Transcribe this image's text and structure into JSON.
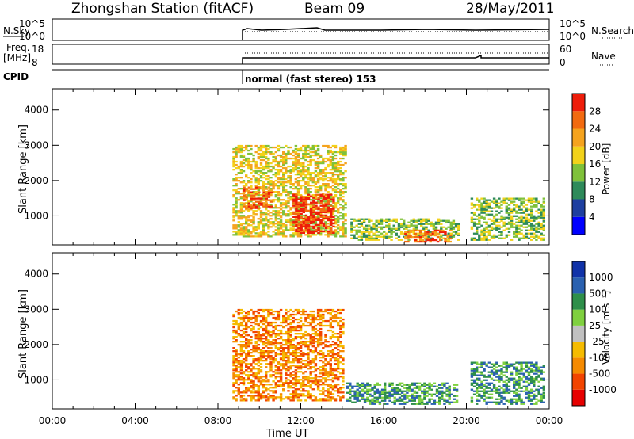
{
  "header": {
    "station": "Zhongshan Station (fitACF)",
    "beam": "Beam 09",
    "date": "28/May/2011"
  },
  "strips": {
    "nsky_label": "N.Sky",
    "nsky_ticks": [
      "10^5",
      "10^0"
    ],
    "nsearch_label": "N.Search",
    "nsearch_ticks": [
      "10^5",
      "10^0"
    ],
    "freq_label": "Freq.",
    "freq_unit": "[MHz]",
    "freq_ticks": [
      "18",
      "8"
    ],
    "nave_label": "Nave",
    "nave_ticks": [
      "60",
      "0"
    ],
    "cpid_label": "CPID",
    "cpid_mode": "normal (fast stereo) 153"
  },
  "colors": {
    "power": [
      "#0000ff",
      "#1e3fa0",
      "#2e8a5a",
      "#7fc13a",
      "#f2d21a",
      "#f5a31e",
      "#f26a10",
      "#ee1d0a"
    ],
    "velocity": [
      "#e60000",
      "#f24400",
      "#f58a00",
      "#f5bb00",
      "#c0c0c0",
      "#7fd03f",
      "#2e8f4a",
      "#2a61b0",
      "#1032a8"
    ]
  },
  "chart_data": [
    {
      "type": "heatmap",
      "panel": "power",
      "ylabel": "Slant Range [km]",
      "y_ticks": [
        1000,
        2000,
        3000,
        4000
      ],
      "ylim": [
        180,
        4600
      ],
      "xlim_hours": [
        0,
        24
      ],
      "colorbar_label": "Power [dB]",
      "colorbar_ticks": [
        4,
        8,
        12,
        16,
        20,
        24,
        28
      ],
      "regions": [
        {
          "t0": 8.7,
          "t1": 14.2,
          "r0": 400,
          "r1": 3000,
          "level": 4
        },
        {
          "t0": 11.6,
          "t1": 13.6,
          "r0": 500,
          "r1": 1600,
          "level": 7
        },
        {
          "t0": 9.2,
          "t1": 10.6,
          "r0": 1200,
          "r1": 1800,
          "level": 6
        },
        {
          "t0": 14.4,
          "t1": 19.6,
          "r0": 300,
          "r1": 900,
          "level": 3
        },
        {
          "t0": 17.0,
          "t1": 19.2,
          "r0": 250,
          "r1": 600,
          "level": 6
        },
        {
          "t0": 20.2,
          "t1": 23.8,
          "r0": 300,
          "r1": 1500,
          "level": 3
        }
      ]
    },
    {
      "type": "heatmap",
      "panel": "velocity",
      "ylabel": "Slant Range [km]",
      "y_ticks": [
        1000,
        2000,
        3000,
        4000
      ],
      "ylim": [
        180,
        4600
      ],
      "xlim_hours": [
        0,
        24
      ],
      "xlabel": "Time UT",
      "x_ticks": [
        "00:00",
        "04:00",
        "08:00",
        "12:00",
        "16:00",
        "20:00",
        "00:00"
      ],
      "colorbar_label": "Velocity [m s⁻¹]",
      "colorbar_ticks": [
        "1000",
        "500",
        "100",
        "25",
        "-25",
        "-100",
        "-500",
        "-1000"
      ],
      "regions": [
        {
          "t0": 8.7,
          "t1": 14.0,
          "r0": 400,
          "r1": 3000,
          "level": 2
        },
        {
          "t0": 14.2,
          "t1": 19.6,
          "r0": 300,
          "r1": 900,
          "level": 6
        },
        {
          "t0": 20.2,
          "t1": 23.8,
          "r0": 300,
          "r1": 1500,
          "level": 6
        }
      ]
    }
  ]
}
